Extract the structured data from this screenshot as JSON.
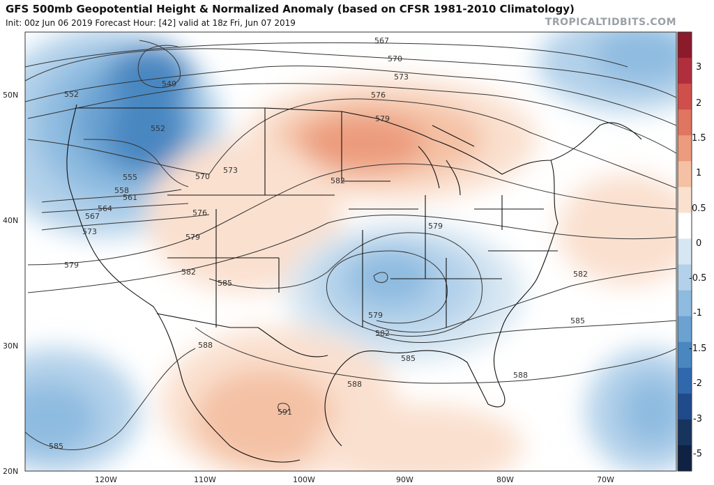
{
  "header": {
    "title": "GFS 500mb Geopotential Height & Normalized Anomaly (based on CFSR 1981-2010 Climatology)",
    "subtitle": "Init: 00z Jun 06 2019   Forecast Hour: [42]   valid at 18z Fri, Jun 07 2019",
    "brand": "TROPICALTIDBITS.COM"
  },
  "map": {
    "lat_labels": [
      "50N",
      "40N",
      "30N",
      "20N"
    ],
    "lon_labels": [
      "120W",
      "110W",
      "100W",
      "90W",
      "80W",
      "70W"
    ],
    "contour_labels": [
      "567",
      "570",
      "573",
      "576",
      "579",
      "549",
      "552",
      "552",
      "555",
      "558",
      "561",
      "564",
      "567",
      "573",
      "570",
      "573",
      "576",
      "579",
      "579",
      "582",
      "585",
      "582",
      "579",
      "579",
      "582",
      "585",
      "585",
      "582",
      "588",
      "588",
      "588",
      "591",
      "585"
    ]
  },
  "colorbar": {
    "labels": [
      "3",
      "2",
      "1.5",
      "1",
      "0.5",
      "0",
      "-0.5",
      "-1",
      "-1.5",
      "-2",
      "-3",
      "-5"
    ],
    "colors": [
      "#8b1a2b",
      "#b12f3c",
      "#cf4f4c",
      "#e07560",
      "#ec9b7d",
      "#f4c1a4",
      "#fae0cf",
      "#ffffff",
      "#d6e6f2",
      "#b3d1ea",
      "#8ebbe0",
      "#6ba2d2",
      "#4a87c1",
      "#2f68ad",
      "#1f4b8b",
      "#17345f",
      "#0f2244"
    ]
  },
  "colors": {
    "positive": "#f0a27f",
    "negative": "#4a87c1",
    "contour": "#333333"
  }
}
